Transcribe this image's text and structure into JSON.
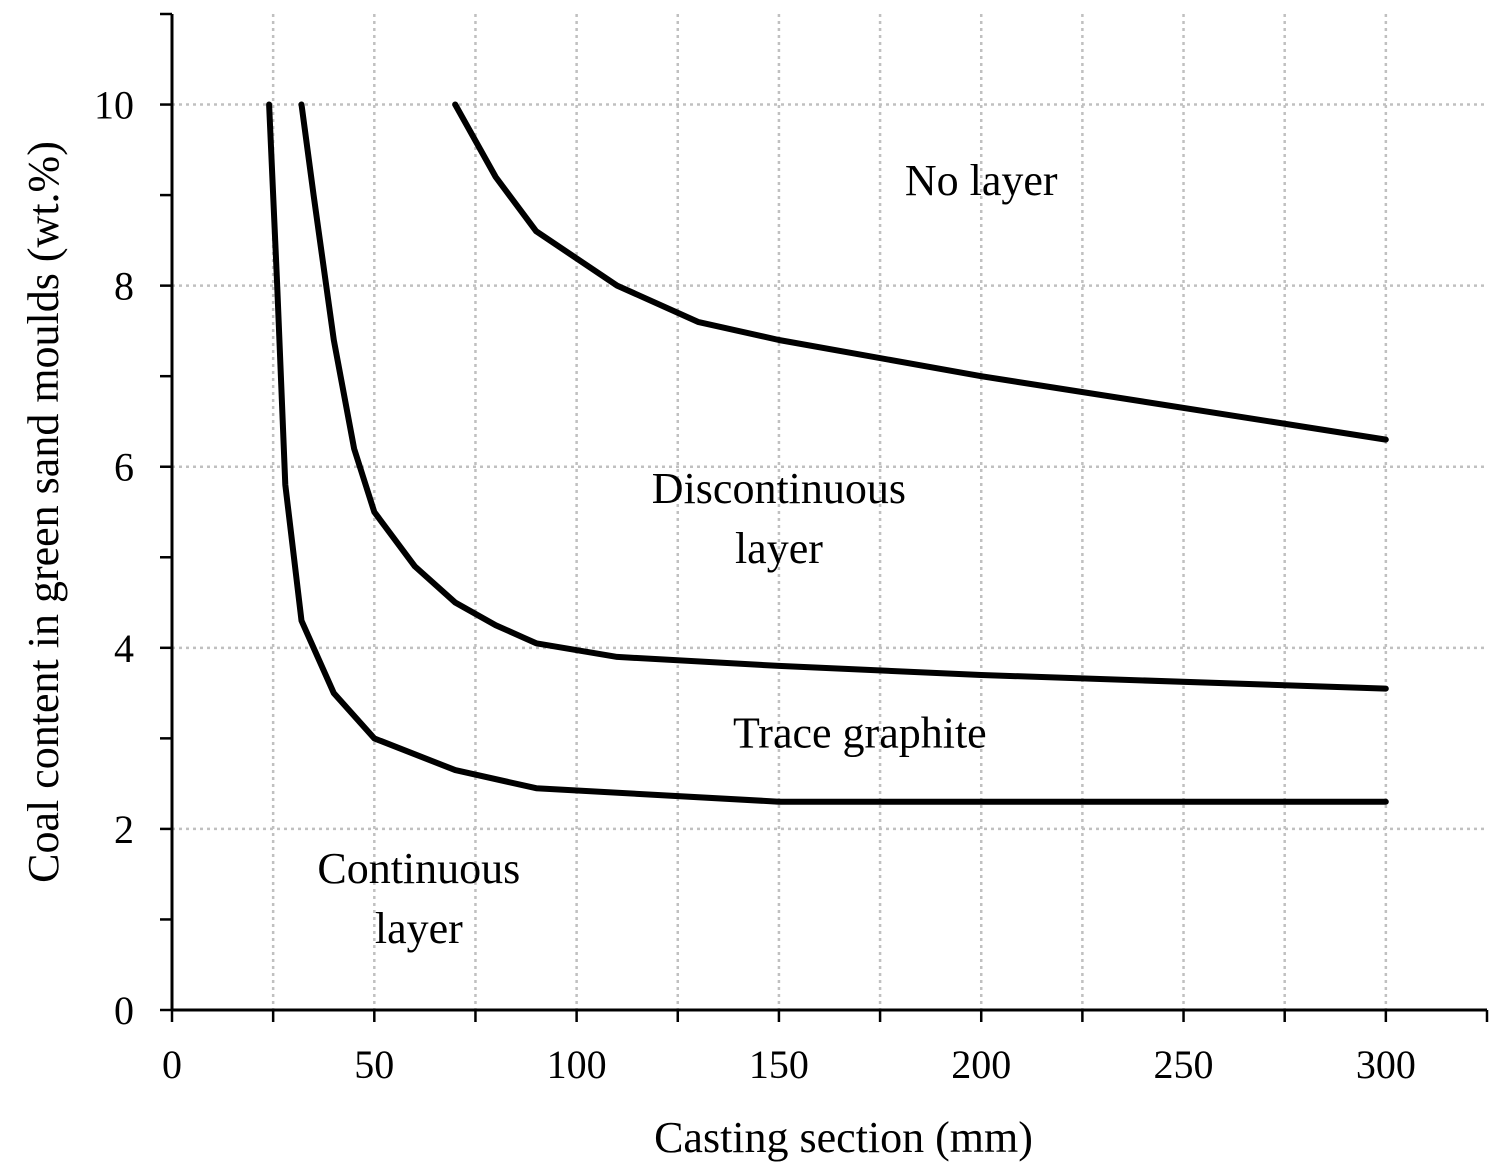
{
  "chart_data": {
    "type": "line",
    "title": "",
    "xlabel": "Casting section (mm)",
    "ylabel": "Coal content in green sand moulds (wt.%)",
    "xlim": [
      0,
      325
    ],
    "ylim": [
      0,
      11
    ],
    "x_ticks": [
      0,
      50,
      100,
      150,
      200,
      250,
      300
    ],
    "x_minor_step": 25,
    "y_ticks": [
      0,
      2,
      4,
      6,
      8,
      10
    ],
    "y_minor_step": 1,
    "grid": true,
    "legend": "none",
    "colors": {
      "line": "#000000",
      "grid": "#c0c0c0",
      "axis": "#000000"
    },
    "series": [
      {
        "name": "Continuous / trace graphite boundary",
        "points": [
          [
            24,
            10
          ],
          [
            26,
            8
          ],
          [
            28,
            5.8
          ],
          [
            32,
            4.3
          ],
          [
            40,
            3.5
          ],
          [
            50,
            3.0
          ],
          [
            70,
            2.65
          ],
          [
            90,
            2.45
          ],
          [
            150,
            2.3
          ],
          [
            300,
            2.3
          ]
        ]
      },
      {
        "name": "Trace graphite / discontinuous boundary",
        "points": [
          [
            32,
            10
          ],
          [
            35,
            9.0
          ],
          [
            40,
            7.4
          ],
          [
            45,
            6.2
          ],
          [
            50,
            5.5
          ],
          [
            60,
            4.9
          ],
          [
            70,
            4.5
          ],
          [
            80,
            4.25
          ],
          [
            90,
            4.05
          ],
          [
            110,
            3.9
          ],
          [
            150,
            3.8
          ],
          [
            200,
            3.7
          ],
          [
            300,
            3.55
          ]
        ]
      },
      {
        "name": "Discontinuous / no layer boundary",
        "points": [
          [
            70,
            10
          ],
          [
            80,
            9.2
          ],
          [
            90,
            8.6
          ],
          [
            110,
            8.0
          ],
          [
            130,
            7.6
          ],
          [
            150,
            7.4
          ],
          [
            200,
            7.0
          ],
          [
            300,
            6.3
          ]
        ]
      }
    ],
    "annotations": [
      {
        "id": "no-layer",
        "lines": [
          "No layer"
        ],
        "x": 200,
        "y": 9.0
      },
      {
        "id": "discontinuous",
        "lines": [
          "Discontinuous",
          "layer"
        ],
        "x": 150,
        "y": 5.6
      },
      {
        "id": "trace-graphite",
        "lines": [
          "Trace graphite"
        ],
        "x": 170,
        "y": 2.9
      },
      {
        "id": "continuous",
        "lines": [
          "Continuous",
          "layer"
        ],
        "x": 61,
        "y": 1.4
      }
    ]
  }
}
